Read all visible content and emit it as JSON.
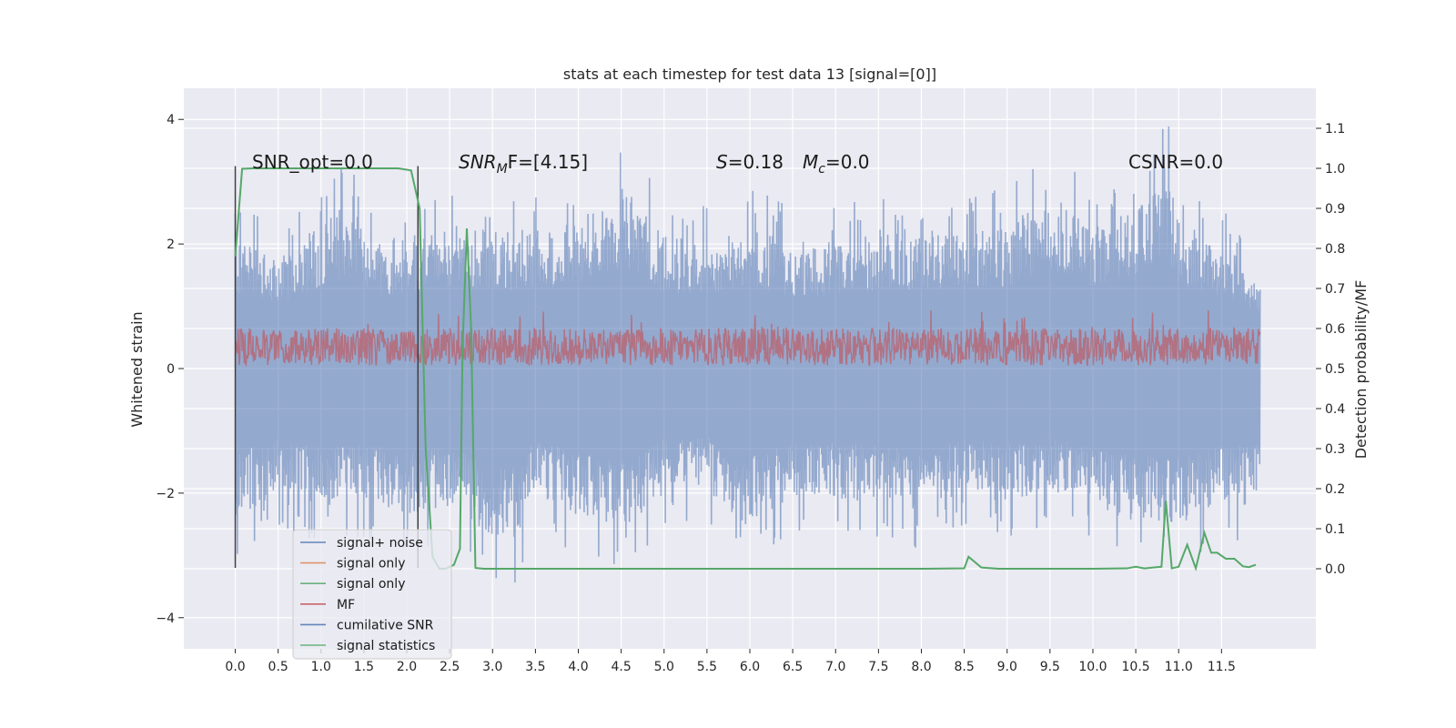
{
  "chart_data": {
    "type": "line",
    "title": "stats at each timestep for test data 13 [signal=[0]]",
    "ylabel": "Whitened strain",
    "ylabel_right": "Detection probability/MF",
    "xlim": [
      -0.6,
      12.6
    ],
    "ylim": [
      -4.5,
      4.5
    ],
    "ylim_right": [
      -0.2,
      1.2
    ],
    "xticks": [
      "0.0",
      "0.5",
      "1.0",
      "1.5",
      "2.0",
      "2.5",
      "3.0",
      "3.5",
      "4.0",
      "4.5",
      "5.0",
      "5.5",
      "6.0",
      "6.5",
      "7.0",
      "7.5",
      "8.0",
      "8.5",
      "9.0",
      "9.5",
      "10.0",
      "10.5",
      "11.0",
      "11.5"
    ],
    "xtick_values": [
      0,
      0.5,
      1,
      1.5,
      2,
      2.5,
      3,
      3.5,
      4,
      4.5,
      5,
      5.5,
      6,
      6.5,
      7,
      7.5,
      8,
      8.5,
      9,
      9.5,
      10,
      10.5,
      11,
      11.5
    ],
    "yticks": [
      "4",
      "2",
      "0",
      "−2",
      "−4"
    ],
    "ytick_values": [
      4,
      2,
      0,
      -2,
      -4
    ],
    "yticks_right": [
      "1.1",
      "1.0",
      "0.9",
      "0.8",
      "0.7",
      "0.6",
      "0.5",
      "0.4",
      "0.3",
      "0.2",
      "0.1",
      "0.0"
    ],
    "ytick_values_right": [
      1.1,
      1.0,
      0.9,
      0.8,
      0.7,
      0.6,
      0.5,
      0.4,
      0.3,
      0.2,
      0.1,
      0.0
    ],
    "grid": true,
    "background": "#eaeaf2",
    "annotations": [
      "SNR_opt=0.0",
      "SNR",
      "M",
      "F=[4.15]",
      "S",
      "=0.18",
      "M",
      "c",
      "=0.0",
      "CSNR=0.0"
    ],
    "vertical_markers_x": [
      0.0,
      2.13
    ],
    "series": [
      {
        "name": "signal+ noise",
        "color": "#4c72b0",
        "axis": "left",
        "kind": "noise-band",
        "x_range": [
          0,
          11.95
        ],
        "envelope_top": [
          [
            0,
            2.6
          ],
          [
            0.5,
            2.3
          ],
          [
            1.0,
            2.9
          ],
          [
            1.3,
            3.3
          ],
          [
            1.7,
            2.6
          ],
          [
            2.2,
            2.7
          ],
          [
            2.6,
            2.9
          ],
          [
            3.0,
            2.8
          ],
          [
            3.5,
            2.8
          ],
          [
            4.0,
            3.0
          ],
          [
            4.55,
            3.65
          ],
          [
            5.0,
            2.7
          ],
          [
            5.5,
            2.6
          ],
          [
            6.0,
            2.9
          ],
          [
            6.5,
            2.6
          ],
          [
            7.0,
            2.6
          ],
          [
            7.5,
            2.8
          ],
          [
            8.0,
            2.8
          ],
          [
            8.6,
            2.8
          ],
          [
            9.0,
            2.9
          ],
          [
            9.55,
            3.45
          ],
          [
            10.0,
            2.9
          ],
          [
            10.5,
            3.2
          ],
          [
            10.85,
            4.15
          ],
          [
            11.0,
            3.0
          ],
          [
            11.5,
            2.6
          ],
          [
            11.95,
            2.0
          ]
        ],
        "envelope_bottom": [
          [
            0,
            -3.0
          ],
          [
            0.5,
            -2.5
          ],
          [
            1.0,
            -2.8
          ],
          [
            1.5,
            -2.7
          ],
          [
            2.0,
            -3.0
          ],
          [
            2.5,
            -2.8
          ],
          [
            3.2,
            -3.65
          ],
          [
            3.5,
            -2.6
          ],
          [
            4.0,
            -3.0
          ],
          [
            4.6,
            -3.2
          ],
          [
            5.0,
            -2.5
          ],
          [
            5.5,
            -2.4
          ],
          [
            5.9,
            -3.2
          ],
          [
            6.5,
            -2.6
          ],
          [
            7.0,
            -2.6
          ],
          [
            7.5,
            -2.7
          ],
          [
            7.9,
            -2.9
          ],
          [
            8.5,
            -2.5
          ],
          [
            9.0,
            -2.7
          ],
          [
            9.5,
            -2.5
          ],
          [
            10.0,
            -2.7
          ],
          [
            10.45,
            -3.1
          ],
          [
            11.0,
            -3.1
          ],
          [
            11.5,
            -2.8
          ],
          [
            11.95,
            -2.7
          ]
        ]
      },
      {
        "name": "signal only",
        "color": "#dd8452",
        "axis": "left",
        "kind": "line",
        "values_note": "zero"
      },
      {
        "name": "signal only",
        "color": "#55a868",
        "axis": "left",
        "kind": "line",
        "values_note": "zero"
      },
      {
        "name": "MF",
        "color": "#c44e52",
        "axis": "left",
        "kind": "mf-band",
        "x_range": [
          0,
          11.95
        ],
        "band_low": 0.05,
        "band_high": 0.65,
        "peak_max": 0.95
      },
      {
        "name": "cumilative SNR",
        "color": "#4c72b0",
        "axis": "left",
        "kind": "line",
        "values_note": "zero"
      },
      {
        "name": "signal statistics",
        "color": "#55a868",
        "axis": "right",
        "kind": "line",
        "x": [
          0.0,
          0.08,
          0.2,
          0.5,
          1.0,
          1.5,
          1.9,
          2.05,
          2.15,
          2.22,
          2.3,
          2.38,
          2.45,
          2.55,
          2.62,
          2.65,
          2.7,
          2.75,
          2.8,
          2.9,
          3.5,
          4.0,
          5.0,
          6.0,
          7.0,
          7.5,
          8.0,
          8.5,
          8.55,
          8.7,
          8.9,
          9.5,
          10.0,
          10.4,
          10.5,
          10.6,
          10.8,
          10.85,
          10.92,
          11.0,
          11.1,
          11.2,
          11.3,
          11.38,
          11.45,
          11.55,
          11.65,
          11.75,
          11.82,
          11.9
        ],
        "y": [
          0.78,
          0.999,
          1.0,
          1.0,
          1.0,
          1.0,
          1.0,
          0.995,
          0.9,
          0.3,
          0.03,
          0.0,
          0.0,
          0.01,
          0.05,
          0.55,
          0.85,
          0.6,
          0.002,
          0.0,
          0.0,
          0.0,
          0.0,
          0.0,
          0.0,
          0.0,
          0.0,
          0.001,
          0.03,
          0.003,
          0.0,
          0.0,
          0.0,
          0.001,
          0.005,
          0.001,
          0.005,
          0.17,
          0.001,
          0.005,
          0.06,
          0.001,
          0.09,
          0.04,
          0.04,
          0.025,
          0.025,
          0.006,
          0.004,
          0.01
        ]
      }
    ],
    "legend_position": "lower-left",
    "legend": [
      {
        "label": "signal+ noise",
        "color": "#4c72b0"
      },
      {
        "label": "signal only",
        "color": "#dd8452"
      },
      {
        "label": "signal only",
        "color": "#55a868"
      },
      {
        "label": "MF",
        "color": "#c44e52"
      },
      {
        "label": "cumilative SNR",
        "color": "#4c72b0"
      },
      {
        "label": "signal statistics",
        "color": "#55a868"
      }
    ]
  }
}
